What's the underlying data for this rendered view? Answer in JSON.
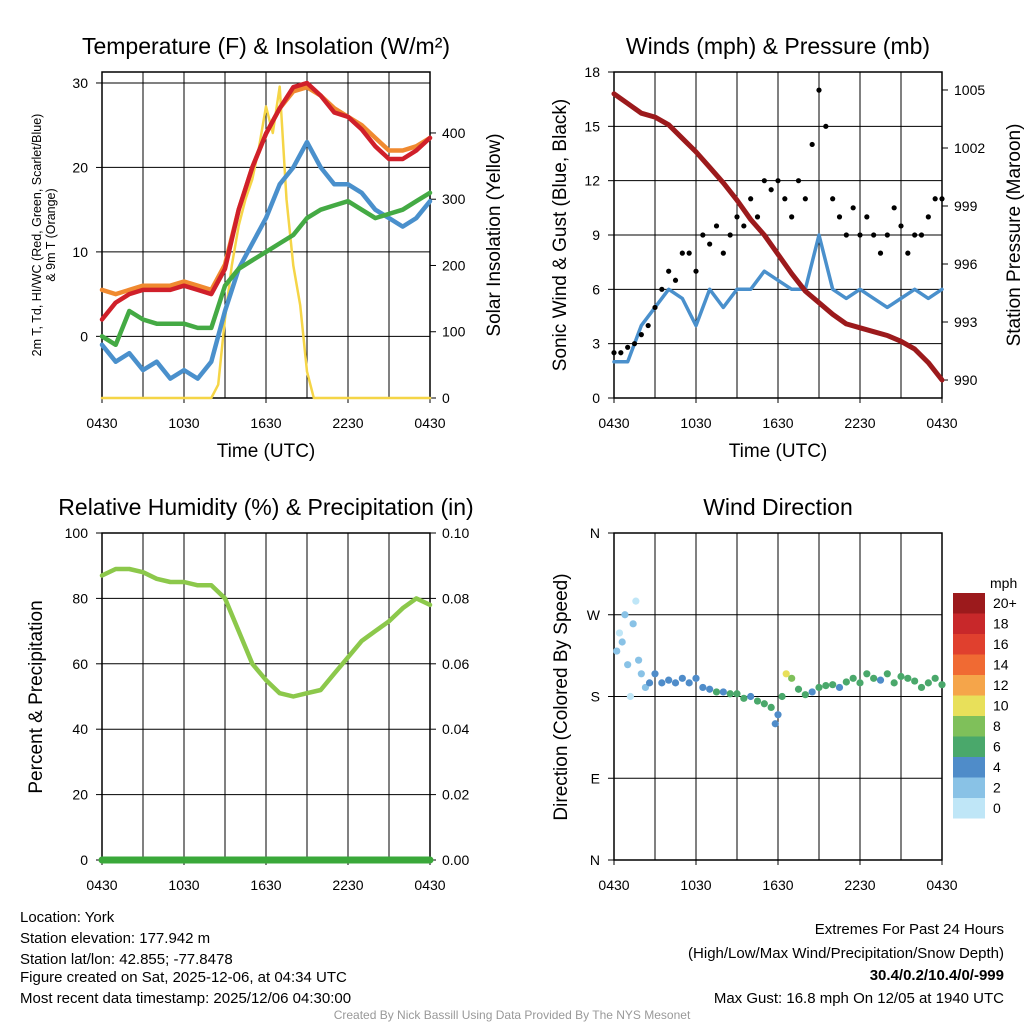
{
  "footer": {
    "location": "Location: York",
    "elevation": "Station elevation: 177.942 m",
    "latlon": "Station lat/lon: 42.855; -77.8478",
    "created": "Figure created on Sat, 2025-12-06, at 04:34 UTC",
    "recent": "Most recent data timestamp: 2025/12/06 04:30:00",
    "extremes_title": "Extremes For Past 24 Hours",
    "extremes_sub": "(High/Low/Max Wind/Precipitation/Snow Depth)",
    "extremes_values": "30.4/0.2/10.4/0/-999",
    "max_gust": "Max Gust: 16.8 mph On 12/05 at 1940 UTC",
    "credit": "Created By Nick Bassill Using Data Provided By The NYS Mesonet",
    "extremes_color": "#d0202a"
  },
  "chart_data": [
    {
      "type": "line",
      "title": "Temperature (F) & Insolation (W/m²)",
      "xlabel": "Time (UTC)",
      "ylabel_line1": "2m T, Td, HI/WC (Red, Green, Scarlet/Blue)",
      "ylabel_line2": "& 9m T (Orange)",
      "ylabel_right": "Solar Insolation (Yellow)",
      "xticks": [
        "0430",
        "1030",
        "1630",
        "2230",
        "0430"
      ],
      "yticks": [
        "0",
        "10",
        "20",
        "30"
      ],
      "yticks_right": [
        "0",
        "100",
        "200",
        "300",
        "400"
      ],
      "ylim": [
        -7.3,
        31.3
      ],
      "ylim_right": [
        0,
        492
      ],
      "x_hours": [
        0,
        1,
        2,
        3,
        4,
        5,
        6,
        7,
        8,
        9,
        10,
        11,
        12,
        13,
        14,
        15,
        16,
        17,
        18,
        19,
        20,
        21,
        22,
        23,
        24
      ],
      "series": [
        {
          "name": "9m T",
          "color": "#f08a30",
          "values": [
            5.5,
            5,
            5.5,
            6,
            6,
            6,
            6.5,
            6,
            5.5,
            8.5,
            15,
            20,
            24,
            27,
            29,
            29.5,
            28.5,
            27,
            26,
            25,
            23.5,
            22,
            22,
            22.5,
            23.5
          ]
        },
        {
          "name": "2m T",
          "color": "#d0202a",
          "values": [
            2,
            4,
            5,
            5.5,
            5.5,
            5.5,
            6,
            5.5,
            5,
            8,
            15,
            20,
            24,
            27,
            29.5,
            30,
            28.5,
            26.5,
            26,
            24.5,
            22.5,
            21,
            21,
            22,
            23.5
          ]
        },
        {
          "name": "Td",
          "color": "#4a90cc",
          "values": [
            -1,
            -3,
            -2,
            -4,
            -3,
            -5,
            -4,
            -5,
            -3,
            3,
            8,
            11,
            14,
            18,
            20,
            23,
            20,
            18,
            18,
            17,
            15,
            14,
            13,
            14,
            16
          ]
        },
        {
          "name": "HI/WC",
          "color": "#44aa44",
          "values": [
            0,
            -1,
            3,
            2,
            1.5,
            1.5,
            1.5,
            1,
            1,
            6,
            8,
            9,
            10,
            11,
            12,
            14,
            15,
            15.5,
            16,
            15,
            14,
            14.5,
            15,
            16,
            17
          ]
        }
      ],
      "insolation": {
        "name": "Solar Insolation",
        "color": "#f5d547",
        "x_hours": [
          0,
          8,
          8.5,
          9,
          9.5,
          10,
          10.5,
          11,
          11.5,
          12,
          12.5,
          13,
          13.5,
          14,
          14.5,
          15,
          15.5,
          24
        ],
        "values": [
          0,
          0,
          20,
          120,
          200,
          260,
          300,
          330,
          380,
          440,
          400,
          470,
          300,
          200,
          140,
          40,
          0,
          0
        ]
      }
    },
    {
      "type": "line",
      "title": "Winds (mph) & Pressure (mb)",
      "xlabel": "Time (UTC)",
      "ylabel": "Sonic Wind & Gust (Blue, Black)",
      "ylabel_right": "Station Pressure (Maroon)",
      "xticks": [
        "0430",
        "1030",
        "1630",
        "2230",
        "0430"
      ],
      "yticks": [
        "0",
        "3",
        "6",
        "9",
        "12",
        "15",
        "18"
      ],
      "yticks_right": [
        "990",
        "993",
        "996",
        "999",
        "1002",
        "1005"
      ],
      "ylim": [
        0,
        18
      ],
      "ylim_right": [
        989.07,
        1005.93
      ],
      "x_hours": [
        0,
        1,
        2,
        3,
        4,
        5,
        6,
        7,
        8,
        9,
        10,
        11,
        12,
        13,
        14,
        15,
        16,
        17,
        18,
        19,
        20,
        21,
        22,
        23,
        24
      ],
      "wind": {
        "name": "Sonic Wind",
        "color": "#4a90cc",
        "values": [
          2,
          2,
          4,
          5,
          6,
          5.5,
          4,
          6,
          5,
          6,
          6,
          7,
          6.5,
          6,
          6,
          9,
          6,
          5.5,
          6,
          5.5,
          5,
          5.5,
          6,
          5.5,
          6
        ]
      },
      "pressure": {
        "name": "Station Pressure",
        "color": "#9c1a1c",
        "values": [
          1004.8,
          1004.3,
          1003.8,
          1003.6,
          1003.2,
          1002.5,
          1001.8,
          1001,
          1000.2,
          999.3,
          998.3,
          997.5,
          996.5,
          995.5,
          994.6,
          994,
          993.4,
          992.9,
          992.7,
          992.5,
          992.3,
          992,
          991.6,
          990.9,
          990
        ]
      },
      "gust": {
        "name": "Gust",
        "color": "#000000",
        "step_hours": 0.5,
        "values": [
          2.5,
          2.5,
          2.8,
          3,
          3.5,
          4,
          5,
          6,
          7,
          6.5,
          8,
          8,
          7,
          9,
          8.5,
          9.5,
          8,
          9,
          10,
          9.5,
          11,
          10,
          12,
          11.5,
          12,
          11,
          10,
          12,
          11,
          14,
          17,
          15,
          11,
          10,
          9,
          10.5,
          9,
          10,
          9,
          8,
          9,
          10.5,
          9.5,
          8,
          9,
          9,
          10,
          11,
          11
        ]
      }
    },
    {
      "type": "line",
      "title": "Relative Humidity (%) & Precipitation (in)",
      "ylabel": "Percent & Precipitation",
      "xticks": [
        "0430",
        "1030",
        "1630",
        "2230",
        "0430"
      ],
      "yticks": [
        "0",
        "20",
        "40",
        "60",
        "80",
        "100"
      ],
      "yticks_right": [
        "0.00",
        "0.02",
        "0.04",
        "0.06",
        "0.08",
        "0.10"
      ],
      "ylim": [
        0,
        100
      ],
      "ylim_right": [
        0,
        0.1
      ],
      "x_hours": [
        0,
        1,
        2,
        3,
        4,
        5,
        6,
        7,
        8,
        9,
        10,
        11,
        12,
        13,
        14,
        15,
        16,
        17,
        18,
        19,
        20,
        21,
        22,
        23,
        24
      ],
      "series": [
        {
          "name": "Relative Humidity",
          "color": "#8cc84b",
          "values": [
            87,
            89,
            89,
            88,
            86,
            85,
            85,
            84,
            84,
            80,
            70,
            60,
            55,
            51,
            50,
            51,
            52,
            57,
            62,
            67,
            70,
            73,
            77,
            80,
            78
          ]
        },
        {
          "name": "Precipitation",
          "color": "#3aa83a",
          "values": [
            0,
            0,
            0,
            0,
            0,
            0,
            0,
            0,
            0,
            0,
            0,
            0,
            0,
            0,
            0,
            0,
            0,
            0,
            0,
            0,
            0,
            0,
            0,
            0,
            0
          ]
        }
      ]
    },
    {
      "type": "scatter",
      "title": "Wind Direction",
      "ylabel": "Direction (Colored By Speed)",
      "xticks": [
        "0430",
        "1030",
        "1630",
        "2230",
        "0430"
      ],
      "yticks": [
        "N",
        "E",
        "S",
        "W",
        "N"
      ],
      "ylim": [
        0,
        360
      ],
      "colorbar": {
        "title": "mph",
        "labels": [
          "0",
          "2",
          "4",
          "6",
          "8",
          "10",
          "12",
          "14",
          "16",
          "18",
          "20+"
        ],
        "colors": [
          "#bfe6f7",
          "#89c2e6",
          "#4f8cc9",
          "#4aa86b",
          "#7fc05a",
          "#e8e05a",
          "#f5a54a",
          "#f06a33",
          "#e0402e",
          "#c8282a",
          "#9c1a1c"
        ]
      },
      "points": [
        [
          0.2,
          230,
          2
        ],
        [
          0.4,
          250,
          1
        ],
        [
          0.6,
          240,
          3
        ],
        [
          0.8,
          270,
          2
        ],
        [
          1,
          215,
          3
        ],
        [
          1.2,
          180,
          1
        ],
        [
          1.4,
          260,
          2
        ],
        [
          1.6,
          285,
          1
        ],
        [
          1.8,
          220,
          3
        ],
        [
          2,
          205,
          3
        ],
        [
          2.3,
          190,
          3
        ],
        [
          2.6,
          195,
          4
        ],
        [
          3,
          205,
          4
        ],
        [
          3.5,
          195,
          4
        ],
        [
          4,
          198,
          4
        ],
        [
          4.5,
          195,
          4
        ],
        [
          5,
          200,
          4
        ],
        [
          5.5,
          195,
          4
        ],
        [
          6,
          200,
          5
        ],
        [
          6.5,
          190,
          4
        ],
        [
          7,
          188,
          4
        ],
        [
          7.5,
          185,
          6
        ],
        [
          8,
          185,
          5
        ],
        [
          8.5,
          183,
          6
        ],
        [
          9,
          183,
          6
        ],
        [
          9.5,
          178,
          6
        ],
        [
          10,
          180,
          5
        ],
        [
          10.5,
          175,
          6
        ],
        [
          11,
          172,
          6
        ],
        [
          11.5,
          168,
          6
        ],
        [
          11.8,
          150,
          4
        ],
        [
          12,
          160,
          5
        ],
        [
          12.3,
          180,
          6
        ],
        [
          12.6,
          205,
          10
        ],
        [
          13,
          200,
          8
        ],
        [
          13.5,
          188,
          6
        ],
        [
          14,
          182,
          6
        ],
        [
          14.5,
          185,
          5
        ],
        [
          15,
          190,
          6
        ],
        [
          15.5,
          192,
          6
        ],
        [
          16,
          193,
          6
        ],
        [
          16.5,
          190,
          5
        ],
        [
          17,
          196,
          6
        ],
        [
          17.5,
          200,
          6
        ],
        [
          18,
          195,
          6
        ],
        [
          18.5,
          205,
          6
        ],
        [
          19,
          200,
          6
        ],
        [
          19.5,
          198,
          5
        ],
        [
          20,
          205,
          7
        ],
        [
          20.5,
          195,
          6
        ],
        [
          21,
          202,
          6
        ],
        [
          21.5,
          200,
          6
        ],
        [
          22,
          197,
          6
        ],
        [
          22.5,
          190,
          6
        ],
        [
          23,
          195,
          6
        ],
        [
          23.5,
          200,
          7
        ],
        [
          24,
          193,
          6
        ]
      ]
    }
  ]
}
